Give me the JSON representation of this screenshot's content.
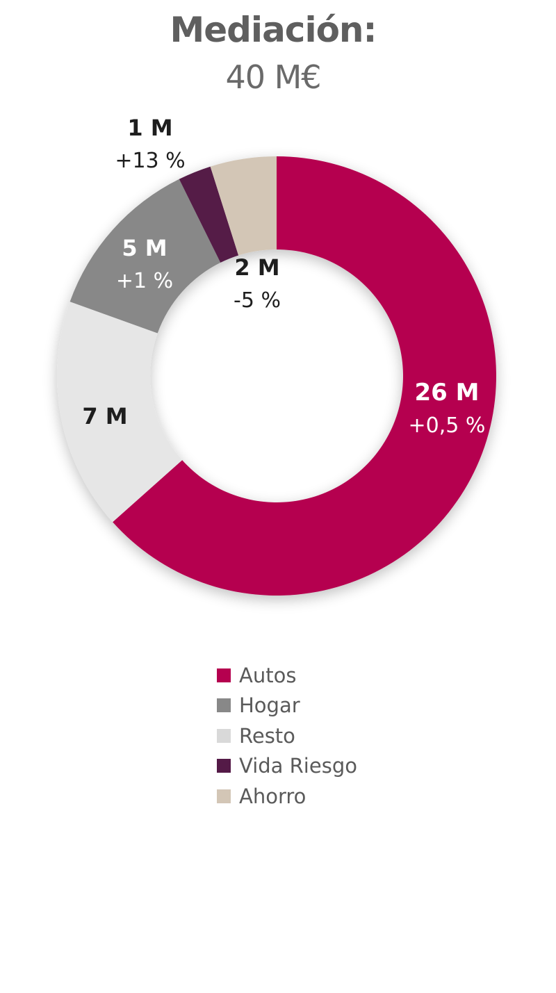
{
  "title": "Mediación:",
  "subtitle": "40 M€",
  "chart_data": {
    "type": "pie",
    "donut": true,
    "title": "Mediación:",
    "subtitle": "40 M€",
    "total": 40,
    "unit": "M€",
    "legend_position": "bottom",
    "slices": [
      {
        "name": "Autos",
        "value": 26,
        "value_label": "26 M",
        "change_label": "+0,5 %",
        "color": "#b5004f",
        "label_color": "#ffffff"
      },
      {
        "name": "Resto",
        "value": 7,
        "value_label": "7 M",
        "change_label": "",
        "color": "#e6e6e6",
        "label_color": "#1e1e1e"
      },
      {
        "name": "Hogar",
        "value": 5,
        "value_label": "5 M",
        "change_label": "+1 %",
        "color": "#888888",
        "label_color": "#ffffff"
      },
      {
        "name": "Vida Riesgo",
        "value": 1,
        "value_label": "1 M",
        "change_label": "+13 %",
        "color": "#541a47",
        "label_color": "#1e1e1e"
      },
      {
        "name": "Ahorro",
        "value": 2,
        "value_label": "2 M",
        "change_label": "-5 %",
        "color": "#d3c6b6",
        "label_color": "#1e1e1e"
      }
    ],
    "legend": [
      {
        "name": "Autos",
        "color": "#b5004f"
      },
      {
        "name": "Hogar",
        "color": "#888888"
      },
      {
        "name": "Resto",
        "color": "#d9d9d9"
      },
      {
        "name": "Vida Riesgo",
        "color": "#541a47"
      },
      {
        "name": "Ahorro",
        "color": "#d3c6b6"
      }
    ]
  }
}
